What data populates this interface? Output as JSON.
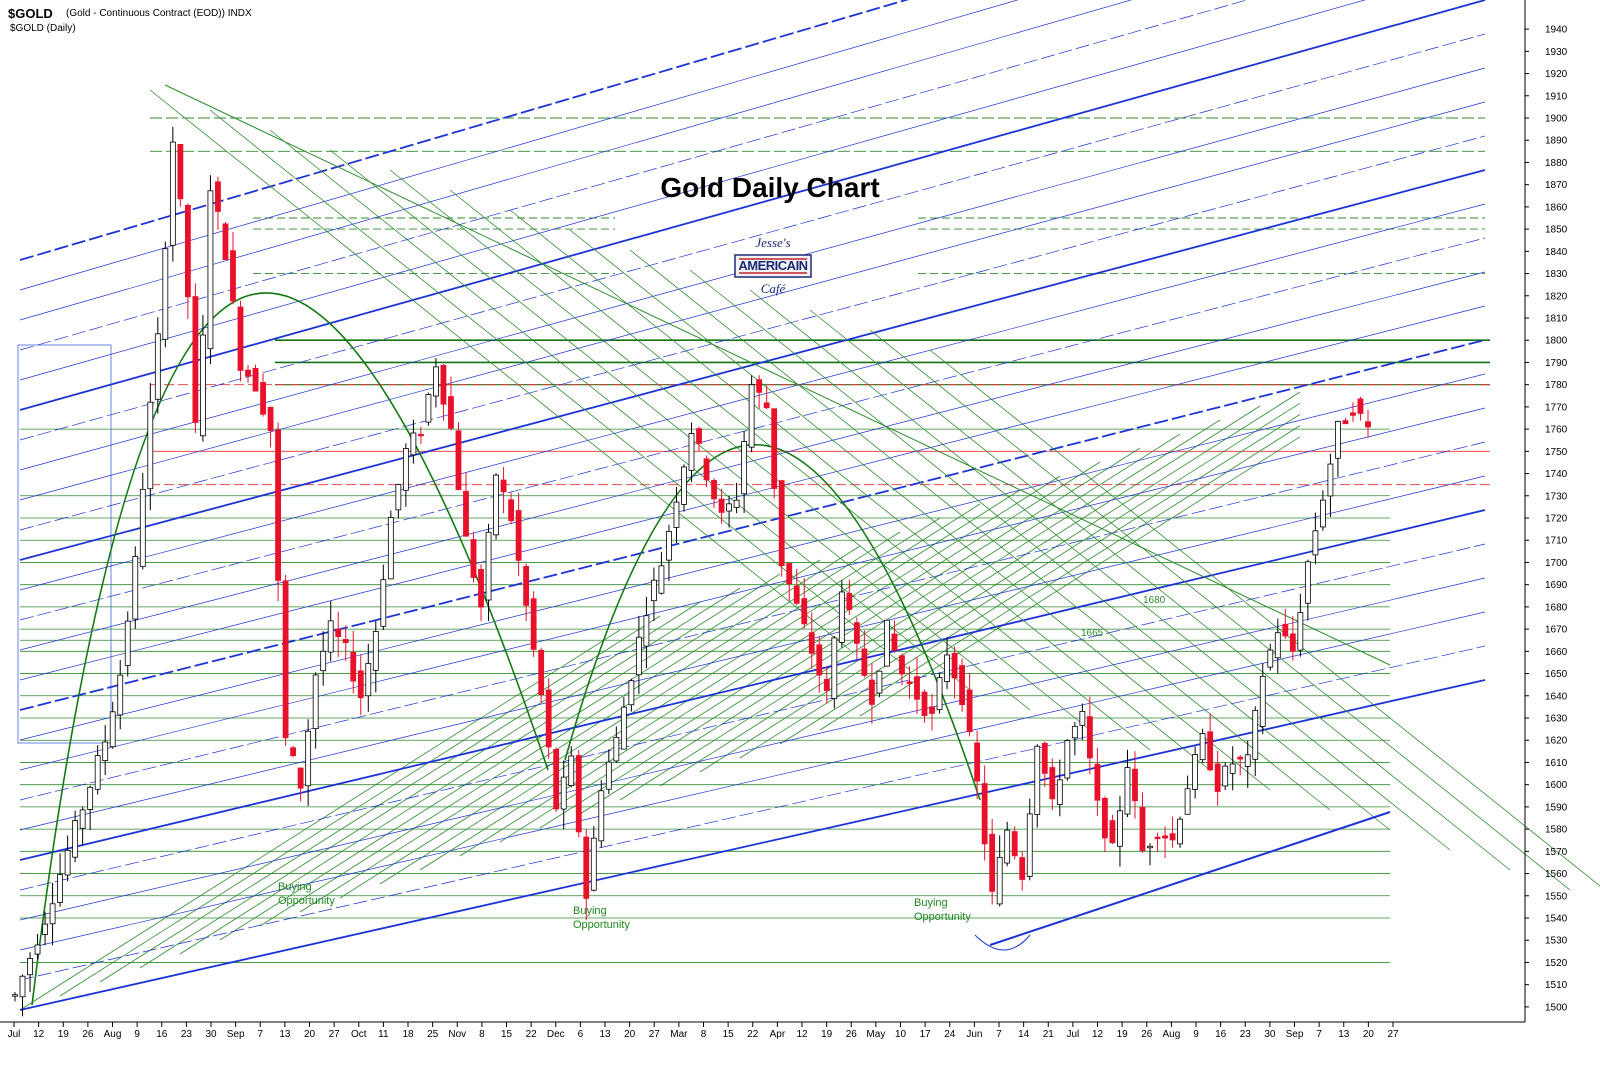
{
  "header": {
    "symbol": "$GOLD",
    "description": "(Gold - Continuous Contract (EOD)) INDX",
    "subtitle": "$GOLD (Daily)"
  },
  "overlay": {
    "title": "Gold Daily Chart",
    "logo": {
      "line1": "Jesse's",
      "line2": "AMERICAIN",
      "line3": "Café"
    },
    "annotations": [
      {
        "name": "buying-opportunity-1",
        "line1": "Buying",
        "line2": "Opportunity"
      },
      {
        "name": "buying-opportunity-2",
        "line1": "Buying",
        "line2": "Opportunity"
      },
      {
        "name": "buying-opportunity-3",
        "line1": "Buying",
        "line2": "Opportunity"
      }
    ],
    "levels": [
      "1680",
      "1665"
    ]
  },
  "colors": {
    "up": "#ffffff",
    "down": "#e8102a",
    "wick_up": "#000000",
    "green": "#2e8b2e",
    "darkgreen": "#137313",
    "blue": "#1c34d6",
    "red": "#e53030"
  },
  "chart_data": {
    "type": "candlestick",
    "ylim": [
      1495,
      1945
    ],
    "yticks": [
      1500,
      1510,
      1520,
      1530,
      1540,
      1550,
      1560,
      1570,
      1580,
      1590,
      1600,
      1610,
      1620,
      1630,
      1640,
      1650,
      1660,
      1670,
      1680,
      1690,
      1700,
      1710,
      1720,
      1730,
      1740,
      1750,
      1760,
      1770,
      1780,
      1790,
      1800,
      1810,
      1820,
      1830,
      1840,
      1850,
      1860,
      1870,
      1880,
      1890,
      1900,
      1910,
      1920,
      1930,
      1940
    ],
    "xticks": [
      "Jul",
      "12",
      "19",
      "26",
      "Aug",
      "9",
      "16",
      "23",
      "30",
      "Sep",
      "7",
      "13",
      "20",
      "27",
      "Oct",
      "11",
      "18",
      "25",
      "Nov",
      "8",
      "15",
      "22",
      "Dec",
      "6",
      "13",
      "20",
      "27",
      "Mar",
      "8",
      "15",
      "22",
      "Apr",
      "12",
      "19",
      "26",
      "May",
      "10",
      "17",
      "24",
      "Jun",
      "7",
      "14",
      "21",
      "Jul",
      "12",
      "19",
      "26",
      "Aug",
      "9",
      "16",
      "23",
      "30",
      "Sep",
      "7",
      "13",
      "20",
      "27"
    ],
    "waypoints": [
      [
        0,
        1505
      ],
      [
        4,
        1540
      ],
      [
        8,
        1580
      ],
      [
        10,
        1600
      ],
      [
        12,
        1620
      ],
      [
        14,
        1650
      ],
      [
        16,
        1700
      ],
      [
        18,
        1770
      ],
      [
        19,
        1800
      ],
      [
        21,
        1890
      ],
      [
        22,
        1860
      ],
      [
        23,
        1820
      ],
      [
        24,
        1760
      ],
      [
        25,
        1800
      ],
      [
        26,
        1870
      ],
      [
        28,
        1840
      ],
      [
        30,
        1790
      ],
      [
        32,
        1780
      ],
      [
        34,
        1760
      ],
      [
        36,
        1620
      ],
      [
        38,
        1600
      ],
      [
        40,
        1650
      ],
      [
        42,
        1670
      ],
      [
        44,
        1660
      ],
      [
        46,
        1640
      ],
      [
        48,
        1670
      ],
      [
        50,
        1720
      ],
      [
        52,
        1750
      ],
      [
        54,
        1760
      ],
      [
        56,
        1790
      ],
      [
        58,
        1760
      ],
      [
        60,
        1710
      ],
      [
        62,
        1680
      ],
      [
        64,
        1740
      ],
      [
        66,
        1720
      ],
      [
        68,
        1680
      ],
      [
        70,
        1640
      ],
      [
        72,
        1590
      ],
      [
        74,
        1610
      ],
      [
        76,
        1550
      ],
      [
        78,
        1600
      ],
      [
        80,
        1620
      ],
      [
        82,
        1650
      ],
      [
        84,
        1680
      ],
      [
        86,
        1700
      ],
      [
        88,
        1730
      ],
      [
        90,
        1760
      ],
      [
        92,
        1740
      ],
      [
        94,
        1720
      ],
      [
        96,
        1730
      ],
      [
        98,
        1780
      ],
      [
        100,
        1770
      ],
      [
        102,
        1700
      ],
      [
        104,
        1680
      ],
      [
        106,
        1660
      ],
      [
        108,
        1640
      ],
      [
        110,
        1690
      ],
      [
        112,
        1660
      ],
      [
        114,
        1640
      ],
      [
        116,
        1670
      ],
      [
        118,
        1650
      ],
      [
        120,
        1640
      ],
      [
        122,
        1630
      ],
      [
        124,
        1660
      ],
      [
        126,
        1640
      ],
      [
        128,
        1600
      ],
      [
        130,
        1550
      ],
      [
        132,
        1580
      ],
      [
        134,
        1560
      ],
      [
        136,
        1620
      ],
      [
        138,
        1590
      ],
      [
        140,
        1620
      ],
      [
        142,
        1630
      ],
      [
        144,
        1590
      ],
      [
        146,
        1570
      ],
      [
        148,
        1610
      ],
      [
        150,
        1570
      ],
      [
        152,
        1580
      ],
      [
        154,
        1575
      ],
      [
        156,
        1600
      ],
      [
        158,
        1620
      ],
      [
        160,
        1600
      ],
      [
        162,
        1610
      ],
      [
        164,
        1610
      ],
      [
        166,
        1650
      ],
      [
        168,
        1670
      ],
      [
        170,
        1660
      ],
      [
        172,
        1700
      ],
      [
        174,
        1730
      ],
      [
        176,
        1760
      ],
      [
        178,
        1770
      ],
      [
        179,
        1765
      ],
      [
        180,
        1760
      ]
    ],
    "candle_count": 181
  }
}
